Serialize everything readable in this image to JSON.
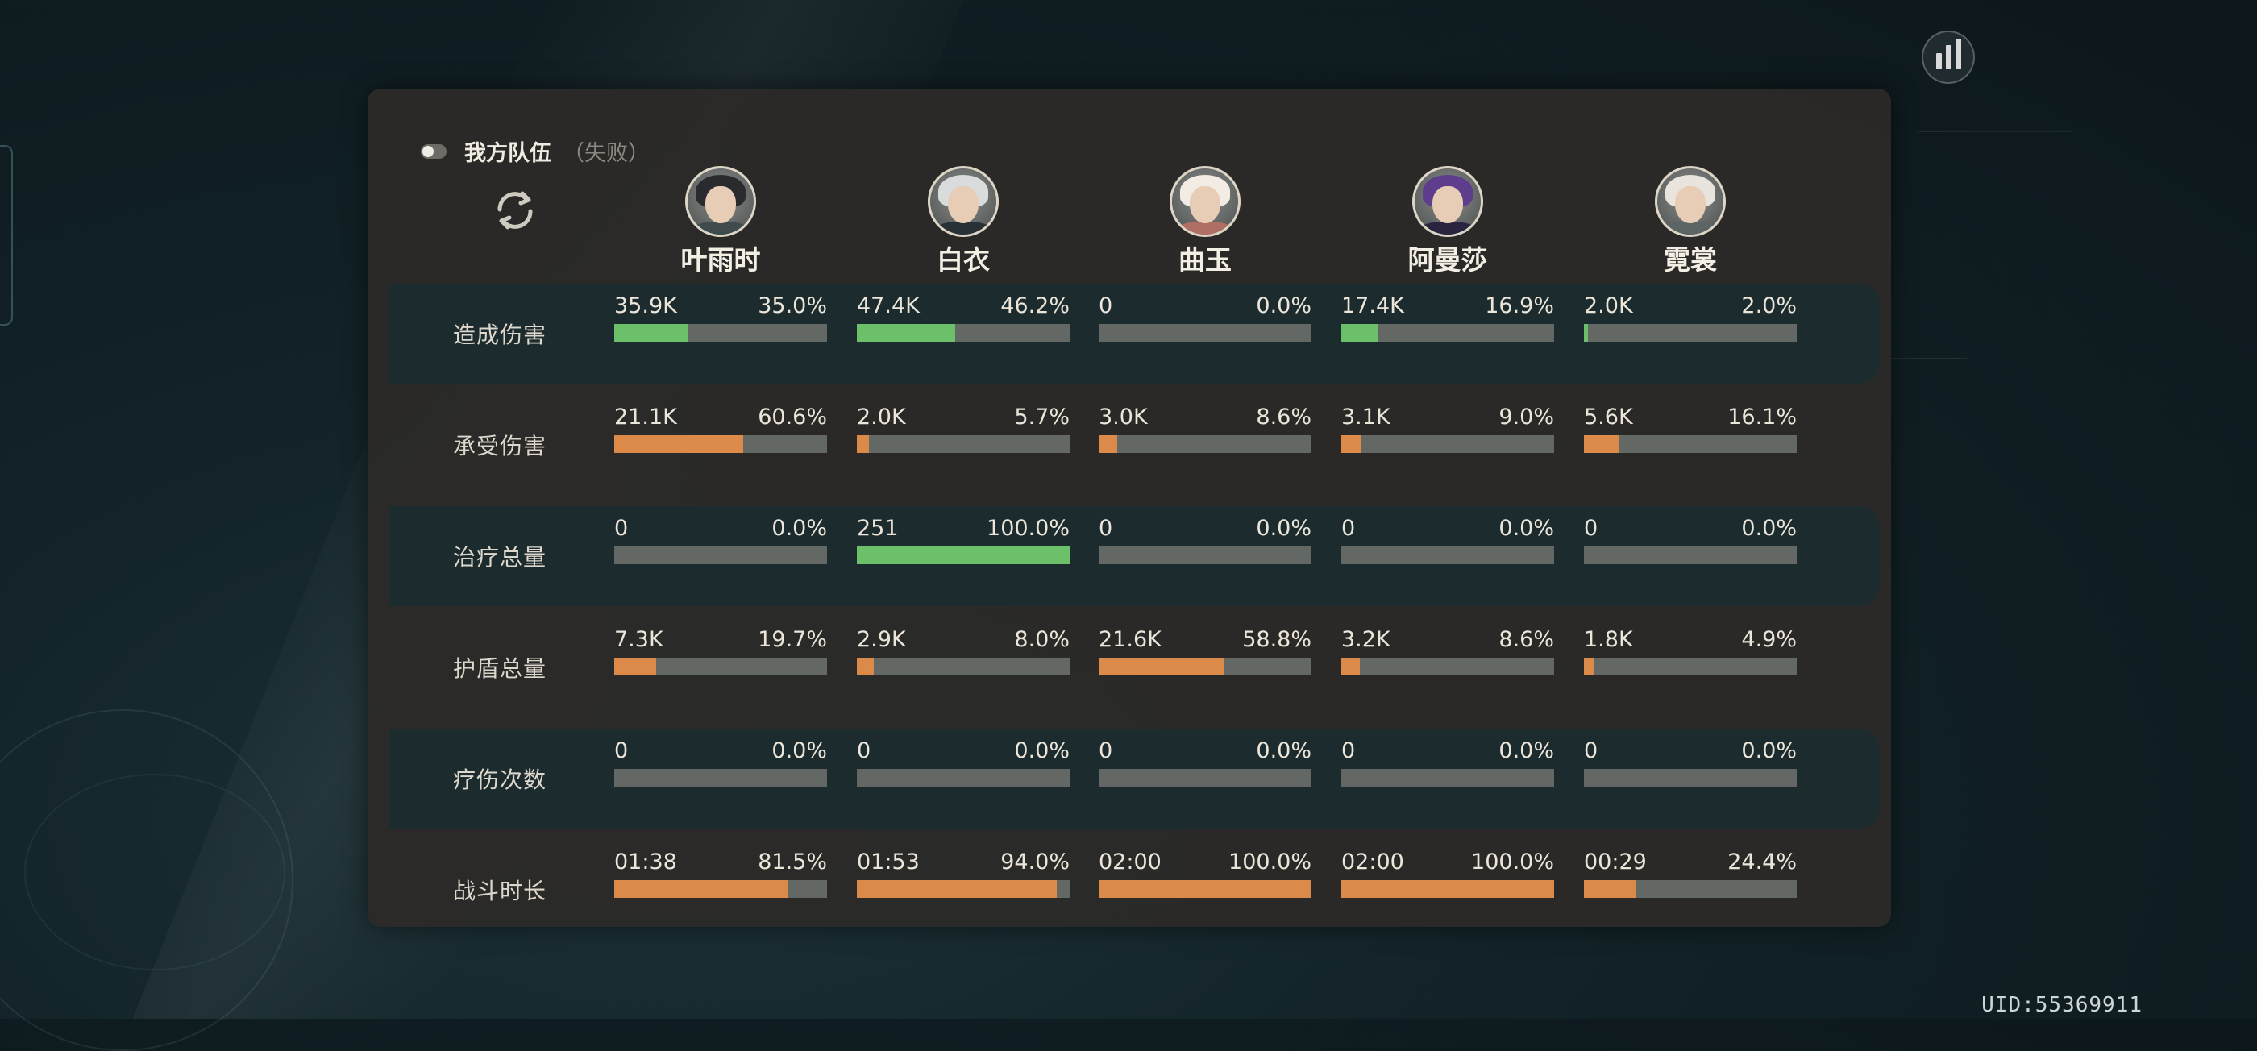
{
  "team": {
    "title": "我方队伍",
    "status": "（失败）"
  },
  "uid": "UID:55369911",
  "heroes": [
    {
      "name": "叶雨时",
      "hair": "#2a2b2e",
      "outfit": "#3f4a4d"
    },
    {
      "name": "白衣",
      "hair": "#d9dcdc",
      "outfit": "#283236"
    },
    {
      "name": "曲玉",
      "hair": "#f2ece4",
      "outfit": "#b06f64"
    },
    {
      "name": "阿曼莎",
      "hair": "#5d3d8c",
      "outfit": "#2b2440"
    },
    {
      "name": "霓裳",
      "hair": "#e9e4dd",
      "outfit": "#5c6466"
    }
  ],
  "colors": {
    "green": "#6cc06a",
    "orange": "#dc8a4a",
    "track": "#636864",
    "band": "#1c2b2e"
  },
  "rows": [
    {
      "label": "造成伤害",
      "color": "green",
      "cells": [
        {
          "value": "35.9K",
          "pct": "35.0%",
          "fraction": 0.35
        },
        {
          "value": "47.4K",
          "pct": "46.2%",
          "fraction": 0.462
        },
        {
          "value": "0",
          "pct": "0.0%",
          "fraction": 0
        },
        {
          "value": "17.4K",
          "pct": "16.9%",
          "fraction": 0.169
        },
        {
          "value": "2.0K",
          "pct": "2.0%",
          "fraction": 0.02
        }
      ]
    },
    {
      "label": "承受伤害",
      "color": "orange",
      "cells": [
        {
          "value": "21.1K",
          "pct": "60.6%",
          "fraction": 0.606
        },
        {
          "value": "2.0K",
          "pct": "5.7%",
          "fraction": 0.057
        },
        {
          "value": "3.0K",
          "pct": "8.6%",
          "fraction": 0.086
        },
        {
          "value": "3.1K",
          "pct": "9.0%",
          "fraction": 0.09
        },
        {
          "value": "5.6K",
          "pct": "16.1%",
          "fraction": 0.161
        }
      ]
    },
    {
      "label": "治疗总量",
      "color": "green",
      "cells": [
        {
          "value": "0",
          "pct": "0.0%",
          "fraction": 0
        },
        {
          "value": "251",
          "pct": "100.0%",
          "fraction": 1.0
        },
        {
          "value": "0",
          "pct": "0.0%",
          "fraction": 0
        },
        {
          "value": "0",
          "pct": "0.0%",
          "fraction": 0
        },
        {
          "value": "0",
          "pct": "0.0%",
          "fraction": 0
        }
      ]
    },
    {
      "label": "护盾总量",
      "color": "orange",
      "cells": [
        {
          "value": "7.3K",
          "pct": "19.7%",
          "fraction": 0.197
        },
        {
          "value": "2.9K",
          "pct": "8.0%",
          "fraction": 0.08
        },
        {
          "value": "21.6K",
          "pct": "58.8%",
          "fraction": 0.588
        },
        {
          "value": "3.2K",
          "pct": "8.6%",
          "fraction": 0.086
        },
        {
          "value": "1.8K",
          "pct": "4.9%",
          "fraction": 0.049
        }
      ]
    },
    {
      "label": "疗伤次数",
      "color": "green",
      "cells": [
        {
          "value": "0",
          "pct": "0.0%",
          "fraction": 0
        },
        {
          "value": "0",
          "pct": "0.0%",
          "fraction": 0
        },
        {
          "value": "0",
          "pct": "0.0%",
          "fraction": 0
        },
        {
          "value": "0",
          "pct": "0.0%",
          "fraction": 0
        },
        {
          "value": "0",
          "pct": "0.0%",
          "fraction": 0
        }
      ]
    },
    {
      "label": "战斗时长",
      "color": "orange",
      "cells": [
        {
          "value": "01:38",
          "pct": "81.5%",
          "fraction": 0.815
        },
        {
          "value": "01:53",
          "pct": "94.0%",
          "fraction": 0.94
        },
        {
          "value": "02:00",
          "pct": "100.0%",
          "fraction": 1.0
        },
        {
          "value": "02:00",
          "pct": "100.0%",
          "fraction": 1.0
        },
        {
          "value": "00:29",
          "pct": "24.4%",
          "fraction": 0.244
        }
      ]
    }
  ]
}
